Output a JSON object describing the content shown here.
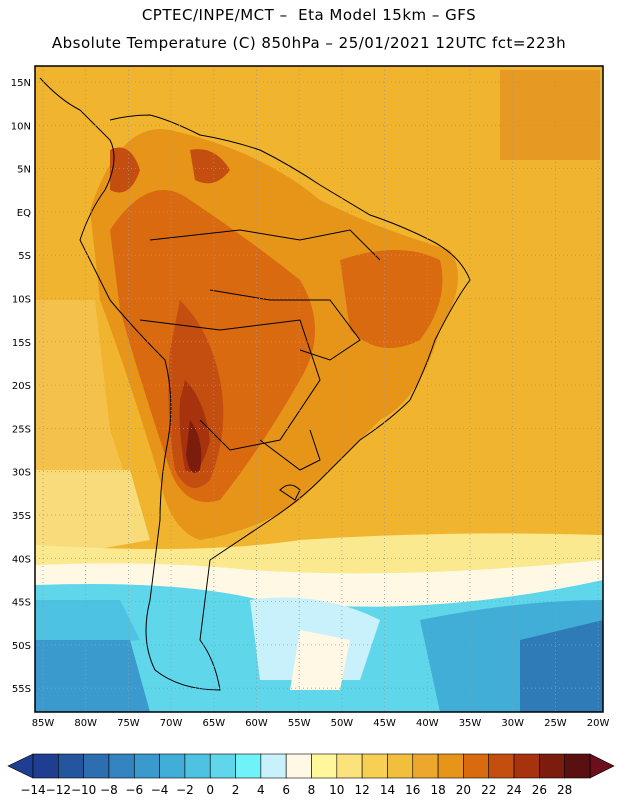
{
  "header": {
    "line1": "CPTEC/INPE/MCT –  Eta Model 15km – GFS",
    "line2": "Absolute Temperature (C) 850hPa – 25/01/2021 12UTC fct=223h"
  },
  "map": {
    "lat_labels": [
      "15N",
      "10N",
      "5N",
      "EQ",
      "5S",
      "10S",
      "15S",
      "20S",
      "25S",
      "30S",
      "35S",
      "40S",
      "45S",
      "50S",
      "55S"
    ],
    "lon_labels": [
      "85W",
      "80W",
      "75W",
      "70W",
      "65W",
      "60W",
      "55W",
      "50W",
      "45W",
      "40W",
      "35W",
      "30W",
      "25W",
      "20W"
    ]
  },
  "colorbar": {
    "labels": [
      "-14",
      "-12",
      "-10",
      "-8",
      "-6",
      "-4",
      "-2",
      "0",
      "2",
      "4",
      "6",
      "8",
      "10",
      "12",
      "14",
      "16",
      "18",
      "20",
      "22",
      "24",
      "26",
      "28"
    ],
    "colors": [
      "#1f3e91",
      "#24569e",
      "#2b6fb0",
      "#3384c0",
      "#3a9acd",
      "#41aed8",
      "#4ec2e2",
      "#5fd6ea",
      "#6ff3f9",
      "#c8f1fb",
      "#fff8e4",
      "#fff79a",
      "#fbe27a",
      "#f7d053",
      "#f2be3d",
      "#eba82c",
      "#e79519",
      "#d96a10",
      "#c44e10",
      "#a6330d",
      "#7b1c0c",
      "#5a1010"
    ],
    "end_low": "#1f3e91",
    "end_high": "#6b0f1c"
  }
}
